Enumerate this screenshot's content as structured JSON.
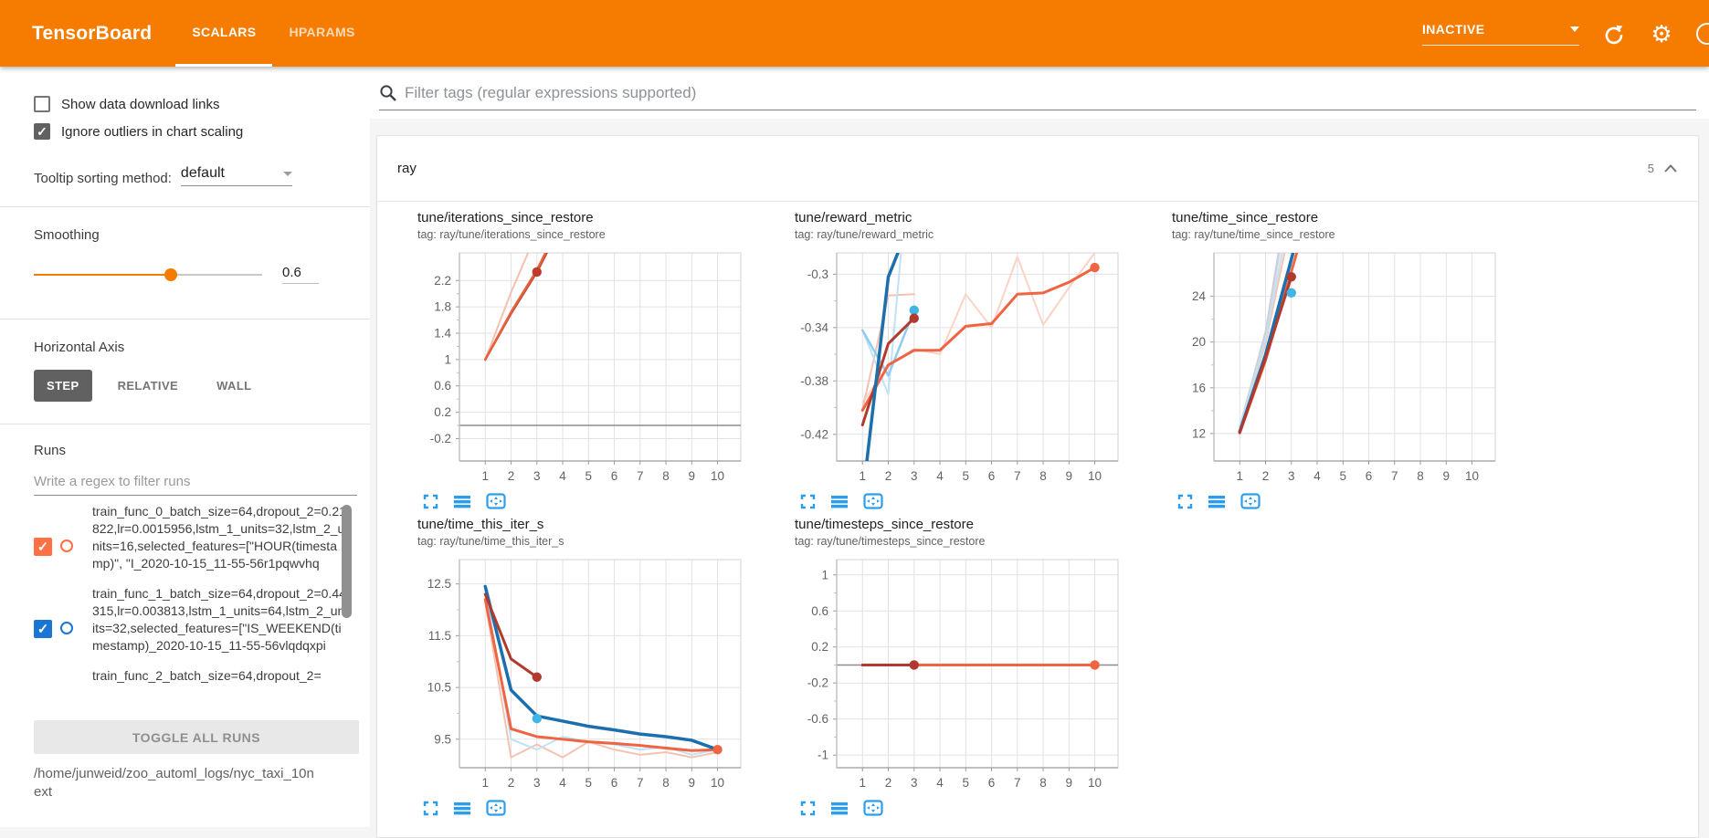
{
  "header": {
    "title": "TensorBoard",
    "tabs": [
      {
        "label": "SCALARS",
        "active": true
      },
      {
        "label": "HPARAMS",
        "active": false
      }
    ],
    "run_status": "INACTIVE",
    "accent_color": "#f57c00"
  },
  "icons": {
    "settings_glyph": "⚙"
  },
  "sidebar": {
    "show_download": {
      "label": "Show data download links",
      "checked": false
    },
    "ignore_outliers": {
      "label": "Ignore outliers in chart scaling",
      "checked": true
    },
    "tooltip_sorting": {
      "label": "Tooltip sorting method:",
      "value": "default"
    },
    "smoothing": {
      "label": "Smoothing",
      "value": "0.6",
      "fraction": 0.6
    },
    "horizontal_axis": {
      "label": "Horizontal Axis",
      "options": [
        {
          "label": "STEP",
          "selected": true
        },
        {
          "label": "RELATIVE",
          "selected": false
        },
        {
          "label": "WALL",
          "selected": false
        }
      ]
    },
    "runs": {
      "label": "Runs",
      "filter_placeholder": "Write a regex to filter runs",
      "items": [
        {
          "checked": true,
          "color": "#ff7043",
          "lines": [
            "train_func_0_batch_size=64,dropout_2=",
            "0.21822,lr=0.0015956,lstm_1_units=32,ls",
            "tm_2_units=16,selected_features=[\"HOU",
            "R(timestamp)\", \"I_2020-10-15_11-55-56r",
            "1pqwvhq"
          ]
        },
        {
          "checked": true,
          "color": "#1976d2",
          "lines": [
            "train_func_1_batch_size=64,dropout_2=",
            "0.44315,lr=0.003813,lstm_1_units=64,lst",
            "m_2_units=32,selected_features=[\"IS_W",
            "EEKEND(timestamp)_2020-10-15_11-55-",
            "56vlqdqxpi"
          ]
        },
        {
          "checked": null,
          "color": null,
          "lines": [
            "train_func_2_batch_size=64,dropout_2="
          ]
        }
      ],
      "toggle_all_label": "TOGGLE ALL RUNS",
      "log_path": "/home/junweid/zoo_automl_logs/nyc_taxi_10next"
    }
  },
  "main": {
    "filter_placeholder": "Filter tags (regular expressions supported)",
    "group": {
      "name": "ray",
      "badge": "5"
    }
  },
  "chart_data": [
    {
      "type": "line",
      "title": "tune/iterations_since_restore",
      "tag": "tag: ray/tune/iterations_since_restore",
      "xlim": [
        0,
        10.9
      ],
      "xticks": [
        1,
        2,
        3,
        4,
        5,
        6,
        7,
        8,
        9,
        10
      ],
      "ylim": [
        -0.54,
        2.62
      ],
      "yticks": [
        2.2,
        1.8,
        1.4,
        1,
        0.6,
        0.2,
        -0.2
      ],
      "zero_line": 0,
      "series": [
        {
          "name": "run0-raw",
          "color": "#f6c0ae",
          "width": 2,
          "points": [
            [
              1,
              1
            ],
            [
              2,
              2.02
            ],
            [
              2.8,
              2.75
            ]
          ]
        },
        {
          "name": "run2-smoothed",
          "color": "#b5432e",
          "width": 2.5,
          "points": [
            [
              1,
              1
            ],
            [
              2,
              1.7
            ],
            [
              3,
              2.33
            ],
            [
              3.55,
              2.75
            ]
          ]
        },
        {
          "name": "run0-smoothed",
          "color": "#e8603c",
          "width": 2.5,
          "points": [
            [
              1,
              1
            ],
            [
              2,
              1.72
            ],
            [
              3,
              2.36
            ],
            [
              3.5,
              2.75
            ]
          ]
        }
      ],
      "markers": [
        {
          "x": 3,
          "y": 2.33,
          "color": "#c0392b"
        }
      ]
    },
    {
      "type": "line",
      "title": "tune/reward_metric",
      "tag": "tag: ray/tune/reward_metric",
      "xlim": [
        0,
        10.9
      ],
      "xticks": [
        1,
        2,
        3,
        4,
        5,
        6,
        7,
        8,
        9,
        10
      ],
      "ylim": [
        -0.44,
        -0.284
      ],
      "yticks": [
        -0.3,
        -0.34,
        -0.38,
        -0.42
      ],
      "zero_line": null,
      "series": [
        {
          "name": "run0-raw",
          "color": "#f9d4c6",
          "width": 2,
          "points": [
            [
              1,
              -0.396
            ],
            [
              2,
              -0.369
            ],
            [
              3,
              -0.356
            ],
            [
              4,
              -0.36
            ],
            [
              5,
              -0.315
            ],
            [
              6,
              -0.34
            ],
            [
              7,
              -0.287
            ],
            [
              8,
              -0.338
            ],
            [
              9,
              -0.31
            ],
            [
              10,
              -0.284
            ]
          ]
        },
        {
          "name": "run2-raw",
          "color": "#f6c2b0",
          "width": 2,
          "points": [
            [
              1,
              -0.401
            ],
            [
              2,
              -0.316
            ],
            [
              3,
              -0.315
            ]
          ]
        },
        {
          "name": "run1-raw",
          "color": "#bfe2f5",
          "width": 2,
          "points": [
            [
              1,
              -0.342
            ],
            [
              2,
              -0.39
            ],
            [
              2.55,
              -0.272
            ]
          ]
        },
        {
          "name": "run1-light",
          "color": "#8ecdf0",
          "width": 2.5,
          "points": [
            [
              1,
              -0.342
            ],
            [
              2,
              -0.376
            ],
            [
              3,
              -0.327
            ]
          ]
        },
        {
          "name": "run0-smoothed",
          "color": "#ef6442",
          "width": 3,
          "points": [
            [
              1,
              -0.402
            ],
            [
              2,
              -0.368
            ],
            [
              3,
              -0.357
            ],
            [
              4,
              -0.357
            ],
            [
              5,
              -0.339
            ],
            [
              6,
              -0.337
            ],
            [
              7,
              -0.315
            ],
            [
              8,
              -0.314
            ],
            [
              9,
              -0.306
            ],
            [
              10,
              -0.295
            ]
          ]
        },
        {
          "name": "run2-smoothed",
          "color": "#b03a2e",
          "width": 3,
          "points": [
            [
              1,
              -0.413
            ],
            [
              2,
              -0.352
            ],
            [
              3,
              -0.333
            ]
          ]
        },
        {
          "name": "run1-smoothed",
          "color": "#1c6fad",
          "width": 3.5,
          "points": [
            [
              1,
              -0.468
            ],
            [
              2,
              -0.302
            ],
            [
              2.62,
              -0.272
            ]
          ]
        }
      ],
      "markers": [
        {
          "x": 3,
          "y": -0.327,
          "color": "#41b6e6"
        },
        {
          "x": 3,
          "y": -0.333,
          "color": "#b03a2e"
        },
        {
          "x": 10,
          "y": -0.295,
          "color": "#ef6442"
        }
      ]
    },
    {
      "type": "line",
      "title": "tune/time_since_restore",
      "tag": "tag: ray/tune/time_since_restore",
      "xlim": [
        0,
        10.9
      ],
      "xticks": [
        1,
        2,
        3,
        4,
        5,
        6,
        7,
        8,
        9,
        10
      ],
      "ylim": [
        9.6,
        27.8
      ],
      "yticks": [
        24,
        20,
        16,
        12
      ],
      "zero_line": null,
      "series": [
        {
          "name": "run3-raw",
          "color": "#dcd6ea",
          "width": 2,
          "points": [
            [
              1,
              12.6
            ],
            [
              2,
              20.6
            ],
            [
              2.6,
              28.5
            ]
          ]
        },
        {
          "name": "run4-raw",
          "color": "#cdd0d6",
          "width": 2,
          "points": [
            [
              1,
              12.55
            ],
            [
              2,
              20.9
            ],
            [
              2.55,
              28.5
            ]
          ]
        },
        {
          "name": "run0-raw",
          "color": "#f6c2b0",
          "width": 2,
          "points": [
            [
              1,
              12.45
            ],
            [
              2,
              19.9
            ],
            [
              2.8,
              28.5
            ]
          ]
        },
        {
          "name": "run1-raw",
          "color": "#bfe2f5",
          "width": 2,
          "points": [
            [
              1,
              12.5
            ],
            [
              2,
              20.2
            ],
            [
              2.7,
              28.5
            ]
          ]
        },
        {
          "name": "run0-smoothed",
          "color": "#ef6442",
          "width": 3,
          "points": [
            [
              1,
              12.05
            ],
            [
              2,
              18.4
            ],
            [
              3.3,
              28.5
            ]
          ]
        },
        {
          "name": "run1-smoothed",
          "color": "#1c6fad",
          "width": 3.5,
          "points": [
            [
              1,
              12.15
            ],
            [
              2,
              18.9
            ],
            [
              3.15,
              28.5
            ]
          ]
        },
        {
          "name": "run2-smoothed",
          "color": "#b03a2e",
          "width": 3,
          "points": [
            [
              1,
              12.1
            ],
            [
              2,
              18.6
            ],
            [
              3,
              25.7
            ]
          ]
        }
      ],
      "markers": [
        {
          "x": 3,
          "y": 25.7,
          "color": "#b03a2e"
        },
        {
          "x": 3,
          "y": 24.3,
          "color": "#41b6e6"
        }
      ]
    },
    {
      "type": "line",
      "title": "tune/time_this_iter_s",
      "tag": "tag: ray/tune/time_this_iter_s",
      "xlim": [
        0,
        10.9
      ],
      "xticks": [
        1,
        2,
        3,
        4,
        5,
        6,
        7,
        8,
        9,
        10
      ],
      "ylim": [
        8.95,
        12.97
      ],
      "yticks": [
        12.5,
        11.5,
        10.5,
        9.5
      ],
      "zero_line": null,
      "series": [
        {
          "name": "run0-raw",
          "color": "#f6c2b0",
          "width": 2,
          "points": [
            [
              1,
              12.15
            ],
            [
              2,
              9.15
            ],
            [
              3,
              9.4
            ],
            [
              4,
              9.15
            ],
            [
              5,
              9.45
            ],
            [
              6,
              9.3
            ],
            [
              7,
              9.2
            ],
            [
              8,
              9.25
            ],
            [
              9,
              9.15
            ],
            [
              10,
              9.25
            ]
          ]
        },
        {
          "name": "run1-raw",
          "color": "#bfe2f5",
          "width": 2,
          "points": [
            [
              1,
              12.4
            ],
            [
              2,
              9.5
            ],
            [
              3,
              9.3
            ],
            [
              4,
              9.55
            ],
            [
              5,
              9.45
            ],
            [
              6,
              9.4
            ],
            [
              7,
              9.3
            ],
            [
              8,
              9.35
            ],
            [
              9,
              9.2
            ],
            [
              10,
              9.3
            ]
          ]
        },
        {
          "name": "run0-smoothed",
          "color": "#ef6442",
          "width": 3,
          "points": [
            [
              1,
              12.2
            ],
            [
              2,
              9.7
            ],
            [
              3,
              9.55
            ],
            [
              4,
              9.5
            ],
            [
              5,
              9.45
            ],
            [
              6,
              9.42
            ],
            [
              7,
              9.38
            ],
            [
              8,
              9.33
            ],
            [
              9,
              9.28
            ],
            [
              10,
              9.3
            ]
          ]
        },
        {
          "name": "run1-smoothed",
          "color": "#1c6fad",
          "width": 3.5,
          "points": [
            [
              1,
              12.45
            ],
            [
              2,
              10.45
            ],
            [
              3,
              9.95
            ],
            [
              4,
              9.85
            ],
            [
              5,
              9.75
            ],
            [
              6,
              9.68
            ],
            [
              7,
              9.6
            ],
            [
              8,
              9.55
            ],
            [
              9,
              9.48
            ],
            [
              10,
              9.3
            ]
          ]
        },
        {
          "name": "run2-smoothed",
          "color": "#b03a2e",
          "width": 3,
          "points": [
            [
              1,
              12.3
            ],
            [
              2,
              11.05
            ],
            [
              3,
              10.7
            ]
          ]
        }
      ],
      "markers": [
        {
          "x": 3,
          "y": 10.7,
          "color": "#b03a2e"
        },
        {
          "x": 3,
          "y": 9.9,
          "color": "#41b6e6"
        },
        {
          "x": 10,
          "y": 9.3,
          "color": "#ef6442"
        }
      ]
    },
    {
      "type": "line",
      "title": "tune/timesteps_since_restore",
      "tag": "tag: ray/tune/timesteps_since_restore",
      "xlim": [
        0,
        10.9
      ],
      "xticks": [
        1,
        2,
        3,
        4,
        5,
        6,
        7,
        8,
        9,
        10
      ],
      "ylim": [
        -1.14,
        1.17
      ],
      "yticks": [
        1,
        0.6,
        0.2,
        -0.2,
        -0.6,
        -1
      ],
      "zero_line": 0,
      "series": [
        {
          "name": "run0-smoothed",
          "color": "#ef6442",
          "width": 3,
          "points": [
            [
              1,
              0
            ],
            [
              10,
              0
            ]
          ]
        },
        {
          "name": "run2-smoothed",
          "color": "#b03a2e",
          "width": 3,
          "points": [
            [
              1,
              0
            ],
            [
              3,
              0
            ]
          ]
        }
      ],
      "markers": [
        {
          "x": 3,
          "y": 0,
          "color": "#b03a2e"
        },
        {
          "x": 10,
          "y": 0,
          "color": "#ef6442"
        }
      ]
    }
  ]
}
